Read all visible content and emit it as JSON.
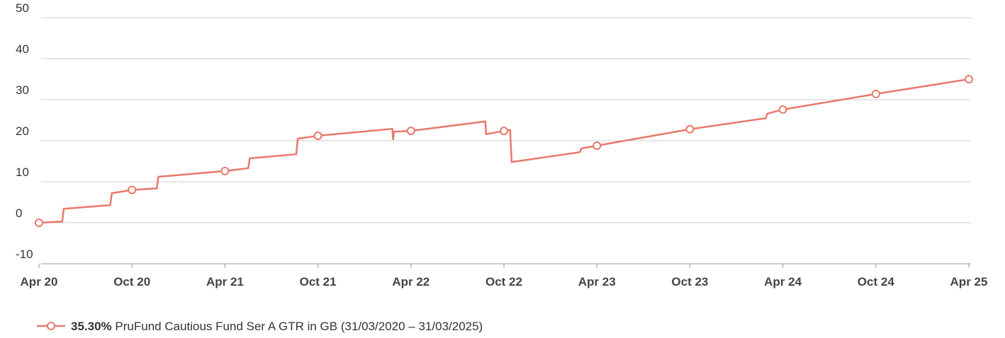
{
  "chart_data": {
    "type": "line",
    "series": [
      {
        "name": "PruFund Cautious Fund Ser A GTR in GB (31/03/2020 – 31/03/2025)",
        "legend_value": "35.30%",
        "color": "#e8796b",
        "x": [
          0,
          1.5,
          1.6,
          4.6,
          4.7,
          6,
          7.6,
          7.7,
          12,
          13.5,
          13.6,
          16.6,
          16.7,
          18,
          22.8,
          22.85,
          22.9,
          24,
          28.8,
          28.85,
          30,
          30.4,
          30.5,
          34.9,
          35,
          36,
          42,
          46.9,
          47,
          48,
          54,
          60
        ],
        "values": [
          0,
          0.3,
          3.4,
          4.3,
          7.2,
          8.0,
          8.4,
          11.2,
          12.6,
          13.3,
          15.7,
          16.7,
          20.5,
          21.2,
          22.9,
          20.2,
          22.2,
          22.4,
          24.7,
          21.6,
          22.4,
          22.6,
          14.8,
          17.2,
          18.1,
          18.8,
          22.8,
          25.5,
          26.6,
          27.6,
          31.4,
          35.0
        ]
      }
    ],
    "xlim": [
      0,
      60
    ],
    "xticks": [
      {
        "value": 0,
        "label": "Apr 20"
      },
      {
        "value": 6,
        "label": "Oct 20"
      },
      {
        "value": 12,
        "label": "Apr 21"
      },
      {
        "value": 18,
        "label": "Oct 21"
      },
      {
        "value": 24,
        "label": "Apr 22"
      },
      {
        "value": 30,
        "label": "Oct 22"
      },
      {
        "value": 36,
        "label": "Apr 23"
      },
      {
        "value": 42,
        "label": "Oct 23"
      },
      {
        "value": 48,
        "label": "Apr 24"
      },
      {
        "value": 54,
        "label": "Oct 24"
      },
      {
        "value": 60,
        "label": "Apr 25"
      }
    ],
    "ylim": [
      -10,
      50
    ],
    "yticks": [
      -10,
      0,
      10,
      20,
      30,
      40,
      50
    ],
    "grid": true
  }
}
